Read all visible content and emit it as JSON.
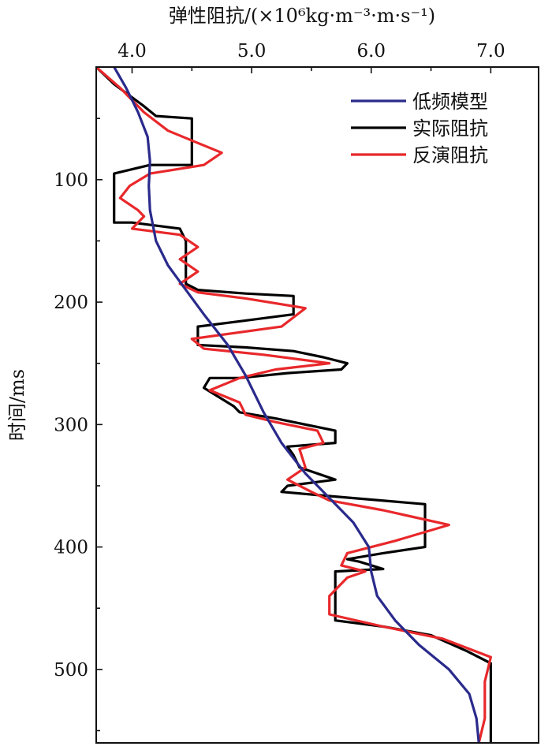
{
  "chart_data": {
    "type": "line",
    "title": "",
    "xlabel": "弹性阻抗/(×10⁶kg·m⁻³·m·s⁻¹)",
    "ylabel": "时间/ms",
    "x_axis_position": "top",
    "xlim": [
      3.7,
      7.4
    ],
    "ylim": [
      8,
      560
    ],
    "y_inverted": true,
    "grid": false,
    "legend_position": "top-right",
    "x_ticks": [
      4.0,
      5.0,
      6.0,
      7.0
    ],
    "x_tick_labels": [
      "4.0",
      "5.0",
      "6.0",
      "7.0"
    ],
    "y_ticks": [
      100,
      200,
      300,
      400,
      500
    ],
    "y_tick_labels": [
      "100",
      "200",
      "300",
      "400",
      "500"
    ],
    "series": [
      {
        "name": "低频模型",
        "color": "#2a2a8c",
        "points": [
          [
            3.85,
            8
          ],
          [
            3.95,
            25
          ],
          [
            4.05,
            45
          ],
          [
            4.13,
            65
          ],
          [
            4.15,
            85
          ],
          [
            4.14,
            105
          ],
          [
            4.15,
            125
          ],
          [
            4.2,
            150
          ],
          [
            4.3,
            170
          ],
          [
            4.45,
            190
          ],
          [
            4.6,
            210
          ],
          [
            4.8,
            235
          ],
          [
            4.95,
            260
          ],
          [
            5.1,
            290
          ],
          [
            5.25,
            315
          ],
          [
            5.45,
            340
          ],
          [
            5.65,
            360
          ],
          [
            5.85,
            380
          ],
          [
            5.98,
            400
          ],
          [
            6.0,
            420
          ],
          [
            6.05,
            440
          ],
          [
            6.2,
            460
          ],
          [
            6.4,
            480
          ],
          [
            6.65,
            500
          ],
          [
            6.82,
            520
          ],
          [
            6.88,
            540
          ],
          [
            6.9,
            560
          ]
        ]
      },
      {
        "name": "实际阻抗",
        "color": "#000000",
        "points": [
          [
            3.7,
            8
          ],
          [
            3.85,
            22
          ],
          [
            4.1,
            40
          ],
          [
            4.2,
            48
          ],
          [
            4.5,
            50
          ],
          [
            4.5,
            65
          ],
          [
            4.5,
            80
          ],
          [
            4.5,
            88
          ],
          [
            4.15,
            88
          ],
          [
            3.85,
            95
          ],
          [
            3.85,
            120
          ],
          [
            3.85,
            135
          ],
          [
            4.0,
            135
          ],
          [
            4.4,
            140
          ],
          [
            4.45,
            150
          ],
          [
            4.45,
            170
          ],
          [
            4.45,
            185
          ],
          [
            4.55,
            190
          ],
          [
            4.95,
            193
          ],
          [
            5.35,
            195
          ],
          [
            5.35,
            210
          ],
          [
            4.95,
            215
          ],
          [
            4.55,
            220
          ],
          [
            4.55,
            235
          ],
          [
            4.95,
            237
          ],
          [
            5.35,
            240
          ],
          [
            5.6,
            245
          ],
          [
            5.8,
            250
          ],
          [
            5.75,
            255
          ],
          [
            5.3,
            258
          ],
          [
            4.9,
            262
          ],
          [
            4.65,
            262
          ],
          [
            4.6,
            270
          ],
          [
            4.85,
            285
          ],
          [
            4.9,
            290
          ],
          [
            5.2,
            295
          ],
          [
            5.7,
            305
          ],
          [
            5.7,
            315
          ],
          [
            5.3,
            318
          ],
          [
            5.35,
            325
          ],
          [
            5.4,
            335
          ],
          [
            5.7,
            345
          ],
          [
            5.3,
            350
          ],
          [
            5.25,
            355
          ],
          [
            5.6,
            358
          ],
          [
            6.45,
            365
          ],
          [
            6.45,
            400
          ],
          [
            6.1,
            405
          ],
          [
            5.8,
            410
          ],
          [
            5.9,
            412
          ],
          [
            6.1,
            418
          ],
          [
            5.7,
            420
          ],
          [
            5.7,
            440
          ],
          [
            5.7,
            460
          ],
          [
            6.1,
            465
          ],
          [
            6.5,
            472
          ],
          [
            6.8,
            485
          ],
          [
            7.0,
            495
          ],
          [
            7.0,
            560
          ]
        ]
      },
      {
        "name": "反演阻抗",
        "color": "#e8282b",
        "points": [
          [
            3.7,
            8
          ],
          [
            3.9,
            25
          ],
          [
            4.1,
            45
          ],
          [
            4.3,
            60
          ],
          [
            4.55,
            70
          ],
          [
            4.75,
            78
          ],
          [
            4.6,
            88
          ],
          [
            4.15,
            95
          ],
          [
            3.98,
            105
          ],
          [
            3.9,
            115
          ],
          [
            4.05,
            125
          ],
          [
            4.1,
            130
          ],
          [
            4.0,
            140
          ],
          [
            4.4,
            145
          ],
          [
            4.55,
            155
          ],
          [
            4.4,
            165
          ],
          [
            4.55,
            175
          ],
          [
            4.4,
            185
          ],
          [
            4.55,
            192
          ],
          [
            4.95,
            197
          ],
          [
            5.45,
            205
          ],
          [
            5.25,
            220
          ],
          [
            4.5,
            230
          ],
          [
            4.6,
            238
          ],
          [
            5.1,
            243
          ],
          [
            5.65,
            250
          ],
          [
            5.2,
            255
          ],
          [
            4.9,
            262
          ],
          [
            4.65,
            272
          ],
          [
            4.9,
            282
          ],
          [
            4.95,
            292
          ],
          [
            5.2,
            298
          ],
          [
            5.55,
            305
          ],
          [
            5.6,
            315
          ],
          [
            5.4,
            320
          ],
          [
            5.45,
            335
          ],
          [
            5.3,
            345
          ],
          [
            5.5,
            355
          ],
          [
            5.65,
            362
          ],
          [
            6.1,
            370
          ],
          [
            6.65,
            382
          ],
          [
            6.2,
            395
          ],
          [
            5.8,
            405
          ],
          [
            5.75,
            415
          ],
          [
            5.95,
            420
          ],
          [
            5.8,
            425
          ],
          [
            5.65,
            440
          ],
          [
            5.65,
            455
          ],
          [
            6.1,
            465
          ],
          [
            6.6,
            475
          ],
          [
            7.0,
            490
          ],
          [
            6.95,
            510
          ],
          [
            6.95,
            540
          ],
          [
            6.9,
            560
          ]
        ]
      }
    ]
  }
}
